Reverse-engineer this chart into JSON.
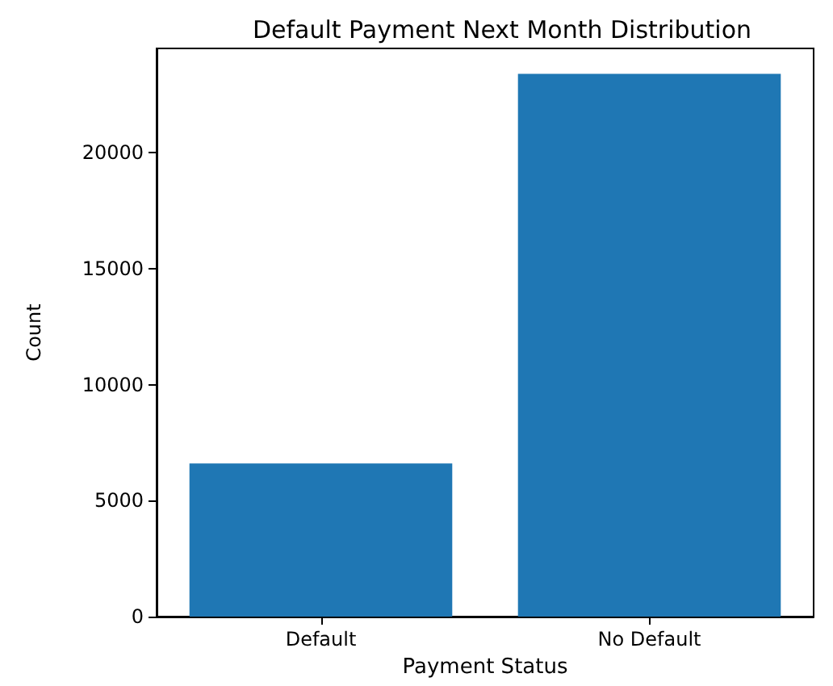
{
  "chart_data": {
    "type": "bar",
    "title": "Default Payment Next Month Distribution",
    "xlabel": "Payment Status",
    "ylabel": "Count",
    "categories": [
      "Default",
      "No Default"
    ],
    "values": [
      6600,
      23400
    ],
    "color": "#1f77b4",
    "ylim": [
      0,
      24500
    ],
    "yticks": [
      0,
      5000,
      10000,
      15000,
      20000
    ],
    "grid": false,
    "legend": false
  }
}
